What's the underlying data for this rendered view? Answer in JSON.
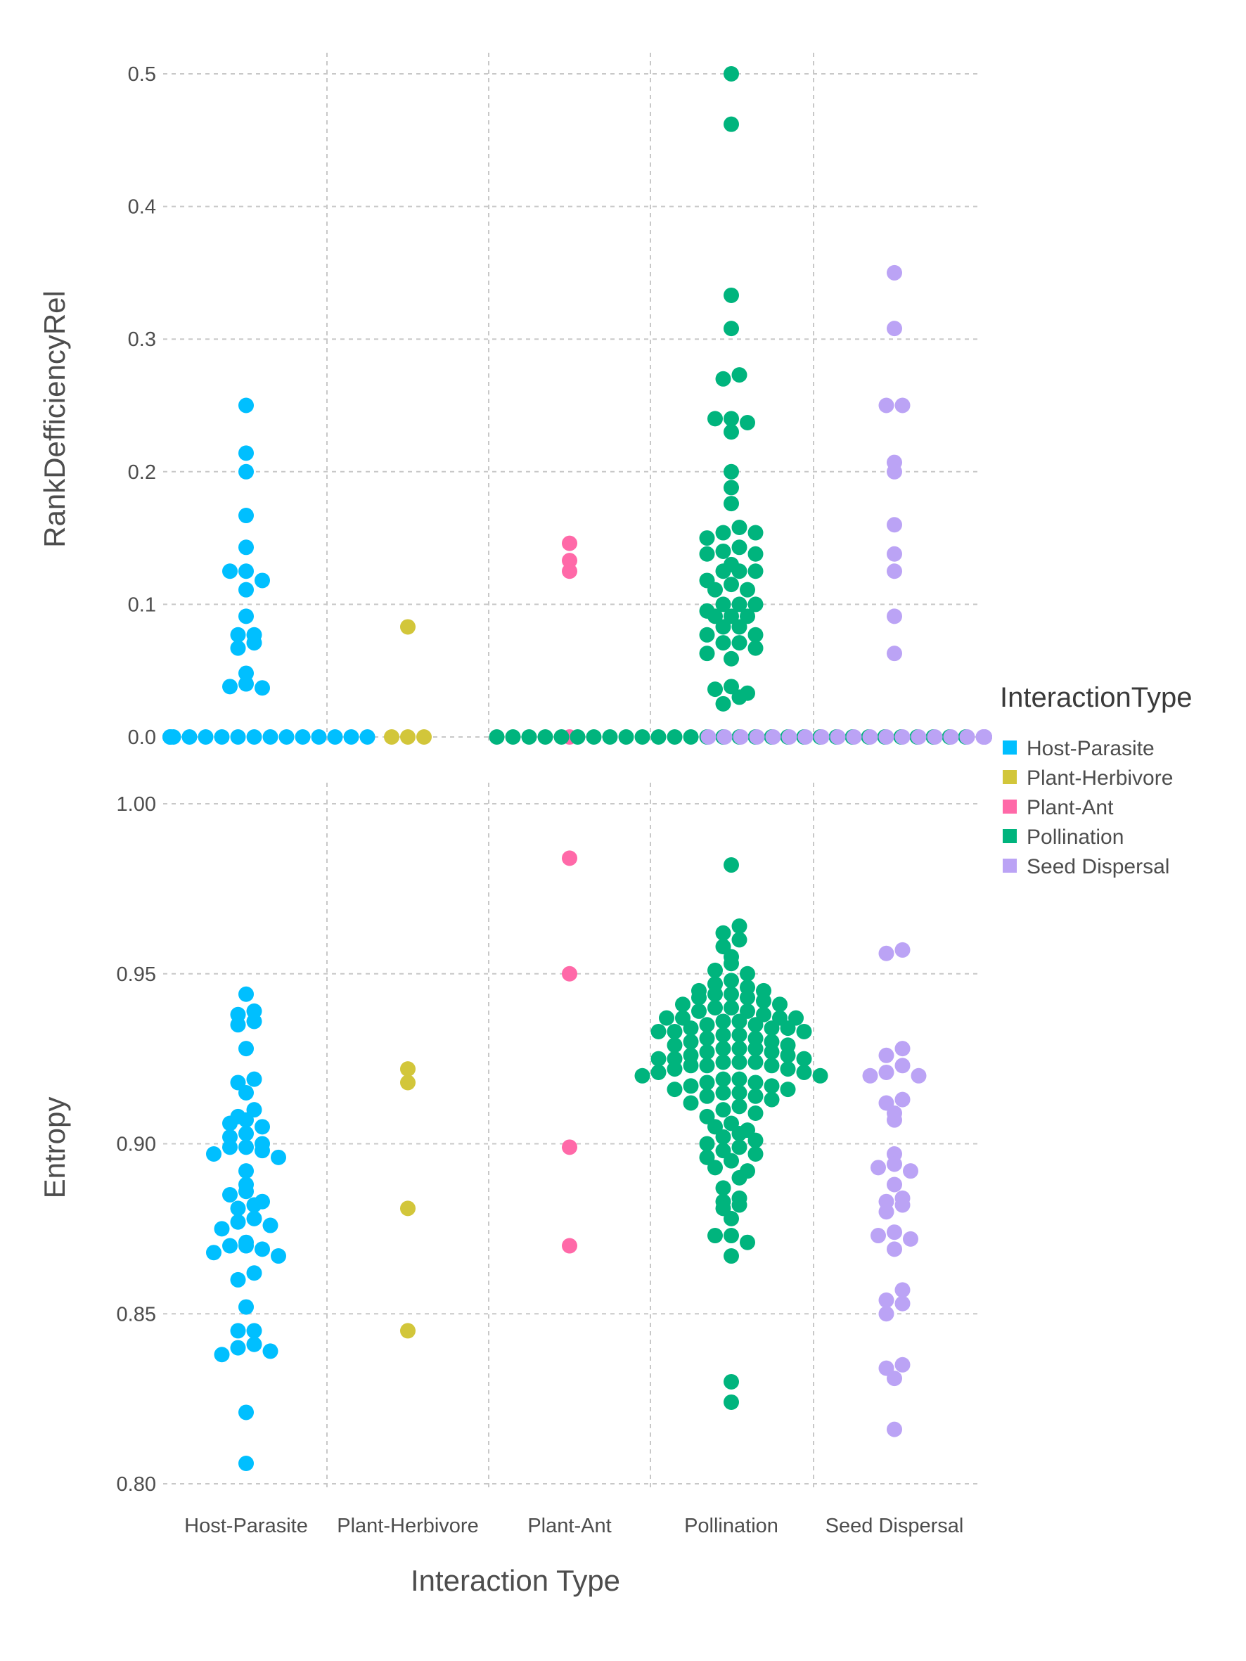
{
  "chart_data": {
    "type": "scatter",
    "subtype": "beeswarm",
    "xlabel": "Interaction Type",
    "categories": [
      "Host-Parasite",
      "Plant-Herbivore",
      "Plant-Ant",
      "Pollination",
      "Seed Dispersal"
    ],
    "legend": {
      "title": "InteractionType",
      "position": "right",
      "entries": [
        {
          "name": "Host-Parasite",
          "color": "#00BFFF"
        },
        {
          "name": "Plant-Herbivore",
          "color": "#D2C63A"
        },
        {
          "name": "Plant-Ant",
          "color": "#FF69A8"
        },
        {
          "name": "Pollination",
          "color": "#00B47D"
        },
        {
          "name": "Seed Dispersal",
          "color": "#BBA3F5"
        }
      ]
    },
    "grid": true,
    "panels": [
      {
        "ylabel": "RankDefficiencyRel",
        "ylim": [
          0,
          0.5
        ],
        "yticks": [
          0.0,
          0.1,
          0.2,
          0.3,
          0.4,
          0.5
        ],
        "ytick_labels": [
          "0.0",
          "0.1",
          "0.2",
          "0.3",
          "0.4",
          "0.5"
        ],
        "series": [
          {
            "name": "Host-Parasite",
            "values": [
              0.25,
              0.214,
              0.2,
              0.167,
              0.143,
              0.125,
              0.125,
              0.118,
              0.111,
              0.091,
              0.077,
              0.077,
              0.071,
              0.067,
              0.048,
              0.04,
              0.038,
              0.037,
              0,
              0,
              0,
              0,
              0,
              0,
              0,
              0,
              0,
              0,
              0,
              0,
              0,
              0,
              0,
              0
            ]
          },
          {
            "name": "Plant-Herbivore",
            "values": [
              0.083,
              0,
              0,
              0
            ]
          },
          {
            "name": "Plant-Ant",
            "values": [
              0.146,
              0.133,
              0.125,
              0
            ]
          },
          {
            "name": "Pollination",
            "values": [
              0.5,
              0.462,
              0.333,
              0.308,
              0.273,
              0.27,
              0.24,
              0.24,
              0.237,
              0.23,
              0.2,
              0.188,
              0.176,
              0.158,
              0.154,
              0.154,
              0.15,
              0.143,
              0.14,
              0.138,
              0.138,
              0.13,
              0.125,
              0.125,
              0.125,
              0.118,
              0.115,
              0.111,
              0.111,
              0.1,
              0.1,
              0.1,
              0.095,
              0.091,
              0.091,
              0.091,
              0.083,
              0.083,
              0.077,
              0.077,
              0.071,
              0.071,
              0.067,
              0.063,
              0.059,
              0.038,
              0.036,
              0.033,
              0.03,
              0.025,
              0,
              0,
              0,
              0,
              0,
              0,
              0,
              0,
              0,
              0,
              0,
              0,
              0,
              0,
              0,
              0,
              0,
              0,
              0,
              0,
              0,
              0,
              0,
              0,
              0,
              0,
              0,
              0,
              0,
              0
            ]
          },
          {
            "name": "Seed Dispersal",
            "values": [
              0.35,
              0.308,
              0.25,
              0.25,
              0.207,
              0.2,
              0.16,
              0.138,
              0.125,
              0.091,
              0.063,
              0,
              0,
              0,
              0,
              0,
              0,
              0,
              0,
              0,
              0,
              0,
              0,
              0,
              0,
              0,
              0,
              0,
              0,
              0,
              0,
              0,
              0,
              0,
              0
            ]
          }
        ]
      },
      {
        "ylabel": "Entropy",
        "ylim": [
          0.8,
          1.0
        ],
        "yticks": [
          0.8,
          0.85,
          0.9,
          0.95,
          1.0
        ],
        "ytick_labels": [
          "0.80",
          "0.85",
          "0.90",
          "0.95",
          "1.00"
        ],
        "series": [
          {
            "name": "Host-Parasite",
            "values": [
              0.944,
              0.939,
              0.938,
              0.936,
              0.935,
              0.928,
              0.919,
              0.918,
              0.915,
              0.91,
              0.908,
              0.907,
              0.906,
              0.905,
              0.903,
              0.902,
              0.9,
              0.899,
              0.899,
              0.898,
              0.897,
              0.896,
              0.892,
              0.888,
              0.886,
              0.885,
              0.883,
              0.882,
              0.881,
              0.878,
              0.877,
              0.876,
              0.875,
              0.871,
              0.87,
              0.87,
              0.869,
              0.868,
              0.867,
              0.862,
              0.86,
              0.852,
              0.845,
              0.845,
              0.841,
              0.84,
              0.839,
              0.838,
              0.821,
              0.806
            ]
          },
          {
            "name": "Plant-Herbivore",
            "values": [
              0.922,
              0.918,
              0.881,
              0.845
            ]
          },
          {
            "name": "Plant-Ant",
            "values": [
              0.984,
              0.95,
              0.899,
              0.87
            ]
          },
          {
            "name": "Pollination",
            "values": [
              0.982,
              0.964,
              0.962,
              0.96,
              0.958,
              0.955,
              0.953,
              0.951,
              0.95,
              0.948,
              0.947,
              0.946,
              0.945,
              0.945,
              0.944,
              0.944,
              0.943,
              0.943,
              0.942,
              0.941,
              0.941,
              0.94,
              0.94,
              0.939,
              0.939,
              0.938,
              0.937,
              0.937,
              0.937,
              0.937,
              0.936,
              0.936,
              0.935,
              0.935,
              0.934,
              0.934,
              0.934,
              0.933,
              0.933,
              0.933,
              0.932,
              0.932,
              0.931,
              0.931,
              0.93,
              0.93,
              0.929,
              0.929,
              0.928,
              0.928,
              0.928,
              0.927,
              0.927,
              0.926,
              0.926,
              0.925,
              0.925,
              0.925,
              0.924,
              0.924,
              0.924,
              0.923,
              0.923,
              0.923,
              0.922,
              0.922,
              0.921,
              0.921,
              0.92,
              0.92,
              0.919,
              0.919,
              0.918,
              0.918,
              0.917,
              0.917,
              0.916,
              0.916,
              0.915,
              0.915,
              0.914,
              0.914,
              0.913,
              0.912,
              0.911,
              0.91,
              0.909,
              0.908,
              0.906,
              0.905,
              0.904,
              0.903,
              0.902,
              0.901,
              0.9,
              0.899,
              0.898,
              0.897,
              0.896,
              0.895,
              0.893,
              0.892,
              0.89,
              0.887,
              0.884,
              0.883,
              0.882,
              0.881,
              0.878,
              0.873,
              0.873,
              0.871,
              0.867,
              0.83,
              0.824
            ]
          },
          {
            "name": "Seed Dispersal",
            "values": [
              0.957,
              0.956,
              0.928,
              0.926,
              0.923,
              0.921,
              0.92,
              0.92,
              0.913,
              0.912,
              0.909,
              0.907,
              0.897,
              0.894,
              0.893,
              0.892,
              0.888,
              0.884,
              0.883,
              0.882,
              0.88,
              0.874,
              0.873,
              0.872,
              0.869,
              0.857,
              0.854,
              0.853,
              0.85,
              0.835,
              0.834,
              0.831,
              0.816
            ]
          }
        ]
      }
    ]
  }
}
